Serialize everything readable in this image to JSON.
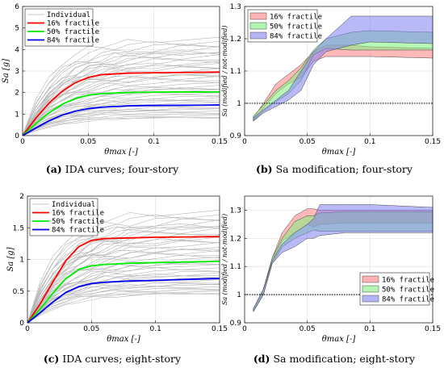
{
  "chart_data": [
    {
      "id": "a",
      "type": "line",
      "caption_letter": "(a)",
      "caption_text": "IDA curves; four-story",
      "xlabel": "θmax [-]",
      "ylabel": "Sa [g]",
      "xlim": [
        0,
        0.15
      ],
      "ylim": [
        0,
        6
      ],
      "xticks": [
        0,
        0.05,
        0.1,
        0.15
      ],
      "xtick_labels": [
        "0",
        "0.05",
        "0.1",
        "0.15"
      ],
      "yticks": [
        0,
        1,
        2,
        3,
        4,
        5,
        6
      ],
      "ytick_labels": [
        "0",
        "1",
        "2",
        "3",
        "4",
        "5",
        "6"
      ],
      "grid": true,
      "legend_position": "top-left",
      "individual": {
        "name": "Individual",
        "color": "#b4b4b4",
        "count": 44,
        "plateau_min": 0.8,
        "plateau_max": 4.5
      },
      "series": [
        {
          "name": "16% fractile",
          "color": "#ff0000",
          "x": [
            0,
            0.01,
            0.02,
            0.03,
            0.04,
            0.05,
            0.06,
            0.08,
            0.1,
            0.15
          ],
          "y": [
            0,
            0.8,
            1.5,
            2.05,
            2.45,
            2.7,
            2.83,
            2.9,
            2.92,
            2.95
          ]
        },
        {
          "name": "50% fractile",
          "color": "#00ee00",
          "x": [
            0,
            0.01,
            0.02,
            0.03,
            0.04,
            0.05,
            0.06,
            0.08,
            0.1,
            0.15
          ],
          "y": [
            0,
            0.55,
            1.05,
            1.45,
            1.72,
            1.88,
            1.95,
            2.0,
            2.02,
            2.03
          ]
        },
        {
          "name": "84% fractile",
          "color": "#0000ee",
          "x": [
            0,
            0.01,
            0.02,
            0.03,
            0.04,
            0.05,
            0.06,
            0.08,
            0.1,
            0.15
          ],
          "y": [
            0,
            0.35,
            0.68,
            0.95,
            1.13,
            1.25,
            1.32,
            1.38,
            1.4,
            1.42
          ]
        }
      ]
    },
    {
      "id": "b",
      "type": "area",
      "caption_letter": "(b)",
      "caption_text": "Sa modification; four-story",
      "xlabel": "θmax [-]",
      "ylabel": "Sa (modified / not-modified)",
      "xlim": [
        0,
        0.15
      ],
      "ylim": [
        0.9,
        1.3
      ],
      "xticks": [
        0,
        0.05,
        0.1,
        0.15
      ],
      "xtick_labels": [
        "0",
        "0.05",
        "0.1",
        "0.15"
      ],
      "yticks": [
        0.9,
        1,
        1.1,
        1.2,
        1.3
      ],
      "ytick_labels": [
        "0.9",
        "1",
        "1.1",
        "1.2",
        "1.3"
      ],
      "grid": true,
      "legend_position": "top-left",
      "reference_line": 1,
      "series": [
        {
          "name": "16% fractile",
          "color": "#ff8080",
          "x": [
            0.007,
            0.015,
            0.025,
            0.035,
            0.045,
            0.055,
            0.065,
            0.085,
            0.1,
            0.15
          ],
          "upper": [
            0.955,
            1.0,
            1.06,
            1.09,
            1.12,
            1.16,
            1.18,
            1.18,
            1.175,
            1.17
          ],
          "lower": [
            0.945,
            0.985,
            1.03,
            1.06,
            1.08,
            1.13,
            1.145,
            1.145,
            1.145,
            1.14
          ]
        },
        {
          "name": "50% fractile",
          "color": "#80f080",
          "x": [
            0.007,
            0.015,
            0.025,
            0.035,
            0.045,
            0.055,
            0.065,
            0.085,
            0.1,
            0.15
          ],
          "upper": [
            0.96,
            0.995,
            1.04,
            1.07,
            1.11,
            1.165,
            1.2,
            1.22,
            1.225,
            1.22
          ],
          "lower": [
            0.945,
            0.975,
            1.005,
            1.03,
            1.07,
            1.15,
            1.17,
            1.165,
            1.165,
            1.165
          ]
        },
        {
          "name": "84% fractile",
          "color": "#8080f0",
          "x": [
            0.007,
            0.015,
            0.025,
            0.035,
            0.045,
            0.055,
            0.065,
            0.085,
            0.1,
            0.15
          ],
          "upper": [
            0.955,
            0.98,
            1.01,
            1.04,
            1.1,
            1.16,
            1.2,
            1.27,
            1.27,
            1.27
          ],
          "lower": [
            0.945,
            0.97,
            0.99,
            1.01,
            1.04,
            1.12,
            1.16,
            1.18,
            1.19,
            1.185
          ]
        }
      ]
    },
    {
      "id": "c",
      "type": "line",
      "caption_letter": "(c)",
      "caption_text": "IDA curves; eight-story",
      "xlabel": "θmax [-]",
      "ylabel": "Sa [g]",
      "xlim": [
        0,
        0.15
      ],
      "ylim": [
        0,
        2
      ],
      "xticks": [
        0,
        0.05,
        0.1,
        0.15
      ],
      "xtick_labels": [
        "0",
        "0.05",
        "0.1",
        "0.15"
      ],
      "yticks": [
        0,
        0.5,
        1,
        1.5,
        2
      ],
      "ytick_labels": [
        "0",
        "0.5",
        "1",
        "1.5",
        "2"
      ],
      "grid": true,
      "legend_position": "top-left",
      "individual": {
        "name": "Individual",
        "color": "#b4b4b4",
        "count": 44,
        "plateau_min": 0.45,
        "plateau_max": 1.75
      },
      "series": [
        {
          "name": "16% fractile",
          "color": "#ff0000",
          "x": [
            0,
            0.01,
            0.02,
            0.03,
            0.04,
            0.05,
            0.06,
            0.08,
            0.1,
            0.15
          ],
          "y": [
            0,
            0.3,
            0.65,
            0.98,
            1.2,
            1.3,
            1.33,
            1.34,
            1.35,
            1.36
          ]
        },
        {
          "name": "50% fractile",
          "color": "#00ee00",
          "x": [
            0,
            0.01,
            0.02,
            0.03,
            0.04,
            0.05,
            0.06,
            0.08,
            0.1,
            0.15
          ],
          "y": [
            0,
            0.22,
            0.47,
            0.7,
            0.84,
            0.9,
            0.92,
            0.94,
            0.95,
            0.97
          ]
        },
        {
          "name": "84% fractile",
          "color": "#0000ee",
          "x": [
            0,
            0.01,
            0.02,
            0.03,
            0.04,
            0.05,
            0.06,
            0.08,
            0.1,
            0.15
          ],
          "y": [
            0,
            0.16,
            0.33,
            0.48,
            0.57,
            0.62,
            0.64,
            0.66,
            0.67,
            0.7
          ]
        }
      ]
    },
    {
      "id": "d",
      "type": "area",
      "caption_letter": "(d)",
      "caption_text": "Sa modification; eight-story",
      "xlabel": "θmax [-]",
      "ylabel": "Sa (modified / not-modified)",
      "xlim": [
        0,
        0.15
      ],
      "ylim": [
        0.9,
        1.35
      ],
      "xticks": [
        0,
        0.05,
        0.1,
        0.15
      ],
      "xtick_labels": [
        "0",
        "0.05",
        "0.1",
        "0.15"
      ],
      "yticks": [
        0.9,
        1,
        1.1,
        1.2,
        1.3
      ],
      "ytick_labels": [
        "0.9",
        "1",
        "1.1",
        "1.2",
        "1.3"
      ],
      "grid": true,
      "legend_position": "bottom-right",
      "reference_line": 1,
      "series": [
        {
          "name": "16% fractile",
          "color": "#ff8080",
          "x": [
            0.007,
            0.015,
            0.022,
            0.03,
            0.04,
            0.05,
            0.055,
            0.06,
            0.08,
            0.1,
            0.15
          ],
          "upper": [
            0.95,
            1.02,
            1.13,
            1.22,
            1.28,
            1.305,
            1.305,
            1.3,
            1.3,
            1.3,
            1.3
          ],
          "lower": [
            0.94,
            1.0,
            1.12,
            1.19,
            1.22,
            1.25,
            1.24,
            1.25,
            1.255,
            1.255,
            1.255
          ]
        },
        {
          "name": "50% fractile",
          "color": "#80f080",
          "x": [
            0.007,
            0.015,
            0.022,
            0.03,
            0.04,
            0.05,
            0.055,
            0.06,
            0.08,
            0.1,
            0.15
          ],
          "upper": [
            0.95,
            1.02,
            1.13,
            1.2,
            1.26,
            1.28,
            1.28,
            1.29,
            1.295,
            1.295,
            1.295
          ],
          "lower": [
            0.94,
            1.0,
            1.11,
            1.17,
            1.2,
            1.22,
            1.23,
            1.225,
            1.225,
            1.225,
            1.225
          ]
        },
        {
          "name": "84% fractile",
          "color": "#8080f0",
          "x": [
            0.007,
            0.015,
            0.022,
            0.03,
            0.04,
            0.05,
            0.055,
            0.06,
            0.08,
            0.1,
            0.15
          ],
          "upper": [
            0.95,
            1.02,
            1.12,
            1.18,
            1.22,
            1.25,
            1.27,
            1.32,
            1.32,
            1.32,
            1.31
          ],
          "lower": [
            0.94,
            1.0,
            1.11,
            1.15,
            1.17,
            1.2,
            1.2,
            1.21,
            1.22,
            1.22,
            1.22
          ]
        }
      ]
    }
  ]
}
